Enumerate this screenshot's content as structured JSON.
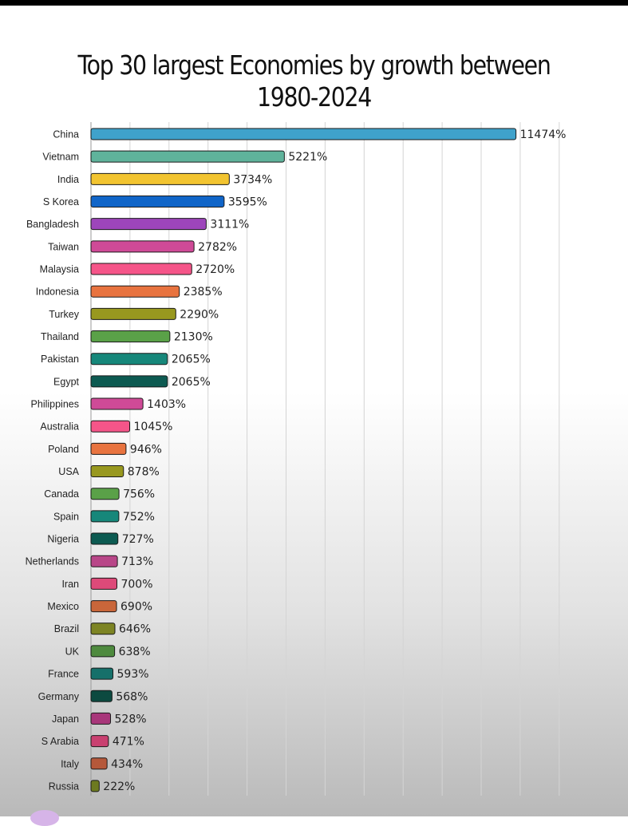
{
  "chart_data": {
    "type": "bar",
    "orientation": "horizontal",
    "title": "Top 30 largest Economies by growth between 1980-2024",
    "title_lines": [
      "Top 30 largest Economies by growth between",
      "1980-2024"
    ],
    "categories": [
      "China",
      "Vietnam",
      "India",
      "S Korea",
      "Bangladesh",
      "Taiwan",
      "Malaysia",
      "Indonesia",
      "Turkey",
      "Thailand",
      "Pakistan",
      "Egypt",
      "Philippines",
      "Australia",
      "Poland",
      "USA",
      "Canada",
      "Spain",
      "Nigeria",
      "Netherlands",
      "Iran",
      "Mexico",
      "Brazil",
      "UK",
      "France",
      "Germany",
      "Japan",
      "S Arabia",
      "Italy",
      "Russia"
    ],
    "values": [
      11474,
      5221,
      3734,
      3595,
      3111,
      2782,
      2720,
      2385,
      2290,
      2130,
      2065,
      2065,
      1403,
      1045,
      946,
      878,
      756,
      752,
      727,
      713,
      700,
      690,
      646,
      638,
      593,
      568,
      528,
      471,
      434,
      222
    ],
    "value_suffix": "%",
    "colors": [
      "#3fa2cb",
      "#5fb39b",
      "#f2c430",
      "#1065c8",
      "#9d45bb",
      "#cf4a97",
      "#f55589",
      "#e8733f",
      "#98981f",
      "#5aa148",
      "#16877a",
      "#0c5a51",
      "#cf4a97",
      "#f55589",
      "#e8733f",
      "#98981f",
      "#5aa148",
      "#16877a",
      "#0c5a51",
      "#b84688",
      "#dd4a79",
      "#c9663a",
      "#7d8424",
      "#4e8a3e",
      "#16706a",
      "#0c4a40",
      "#a8367a",
      "#c94070",
      "#b5583a",
      "#6d7a20"
    ],
    "xlim": [
      0,
      12000
    ],
    "grid": true,
    "legend": "none"
  }
}
